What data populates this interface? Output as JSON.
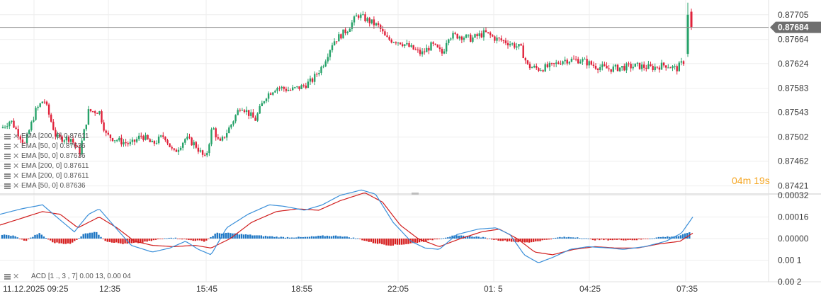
{
  "chart_data": [
    {
      "type": "candlestick",
      "y_ticks": [
        "0.87705",
        "0.87664",
        "0.87624",
        "0.87583",
        "0.87543",
        "0.87502",
        "0.87462",
        "0.87421"
      ],
      "ylim": [
        0.8741,
        0.8772
      ],
      "current_price": "0.87684",
      "countdown": {
        "min": "04",
        "min_unit": "m",
        "sec": "19",
        "sec_unit": "s"
      },
      "legend": [
        "EMA  [200, 0]  0.87611",
        "EMA  [50, 0]  0.87636",
        "EMA  [50, 0]  0.87636",
        "EMA  [200, 0]  0.87611",
        "EMA  [200, 0]  0.87611",
        "EMA  [50, 0]  0.87636"
      ],
      "colors": {
        "up": "#26a269",
        "down": "#e0213a",
        "price_tag": "#6f6f6f"
      },
      "anchors": [
        [
          0,
          0.87515
        ],
        [
          15,
          0.8753
        ],
        [
          35,
          0.8749
        ],
        [
          50,
          0.87545
        ],
        [
          62,
          0.87565
        ],
        [
          80,
          0.875
        ],
        [
          100,
          0.875
        ],
        [
          112,
          0.87475
        ],
        [
          125,
          0.87545
        ],
        [
          140,
          0.87545
        ],
        [
          150,
          0.87505
        ],
        [
          170,
          0.87495
        ],
        [
          185,
          0.8749
        ],
        [
          200,
          0.87505
        ],
        [
          215,
          0.8749
        ],
        [
          232,
          0.87505
        ],
        [
          245,
          0.87475
        ],
        [
          262,
          0.875
        ],
        [
          275,
          0.8749
        ],
        [
          290,
          0.87465
        ],
        [
          300,
          0.8752
        ],
        [
          310,
          0.8749
        ],
        [
          325,
          0.8752
        ],
        [
          340,
          0.87555
        ],
        [
          360,
          0.8753
        ],
        [
          375,
          0.8757
        ],
        [
          390,
          0.87585
        ],
        [
          410,
          0.8758
        ],
        [
          425,
          0.87585
        ],
        [
          440,
          0.87595
        ],
        [
          455,
          0.8762
        ],
        [
          470,
          0.8766
        ],
        [
          490,
          0.8768
        ],
        [
          505,
          0.87705
        ],
        [
          520,
          0.87695
        ],
        [
          535,
          0.87685
        ],
        [
          545,
          0.87665
        ],
        [
          565,
          0.8766
        ],
        [
          580,
          0.8765
        ],
        [
          595,
          0.8764
        ],
        [
          610,
          0.87655
        ],
        [
          625,
          0.8764
        ],
        [
          632,
          0.8767
        ],
        [
          650,
          0.8767
        ],
        [
          665,
          0.87665
        ],
        [
          685,
          0.87675
        ],
        [
          700,
          0.87665
        ],
        [
          715,
          0.8766
        ],
        [
          735,
          0.8765
        ],
        [
          745,
          0.8762
        ],
        [
          760,
          0.87615
        ],
        [
          780,
          0.8762
        ],
        [
          795,
          0.8763
        ],
        [
          820,
          0.8763
        ],
        [
          840,
          0.8762
        ],
        [
          860,
          0.87615
        ],
        [
          880,
          0.87618
        ],
        [
          900,
          0.8762
        ],
        [
          920,
          0.87617
        ],
        [
          940,
          0.87622
        ],
        [
          955,
          0.87615
        ],
        [
          967,
          0.8763
        ]
      ],
      "final_candles": [
        {
          "o": 0.8764,
          "h": 0.87725,
          "l": 0.87635,
          "c": 0.87705
        },
        {
          "o": 0.8771,
          "h": 0.87715,
          "l": 0.8768,
          "c": 0.87684
        }
      ]
    },
    {
      "type": "macd",
      "y_ticks": [
        "0.00032",
        "0.00016",
        "0.00000",
        "0.00 1",
        "0.00 2"
      ],
      "ylim": [
        -0.00032,
        0.00032
      ],
      "legend": "ACD  [1 ., 3 , 7]  0.00 13,  0.00 04",
      "colors": {
        "macd": "#3a8fd9",
        "signal": "#d11f1f",
        "hist_up": "#1f77c4",
        "hist_down": "#d62020"
      },
      "macd_anchors": [
        [
          0,
          0.00018
        ],
        [
          30,
          0.00022
        ],
        [
          60,
          0.00025
        ],
        [
          80,
          0.00016
        ],
        [
          105,
          5e-05
        ],
        [
          125,
          0.00018
        ],
        [
          140,
          0.00022
        ],
        [
          160,
          0.0001
        ],
        [
          185,
          -5e-05
        ],
        [
          215,
          -0.0001
        ],
        [
          240,
          -7e-05
        ],
        [
          262,
          -2e-05
        ],
        [
          280,
          -8e-05
        ],
        [
          298,
          -0.00012
        ],
        [
          320,
          8e-05
        ],
        [
          350,
          0.00018
        ],
        [
          380,
          0.00025
        ],
        [
          400,
          0.00024
        ],
        [
          430,
          0.00021
        ],
        [
          455,
          0.00025
        ],
        [
          480,
          0.00032
        ],
        [
          510,
          0.00036
        ],
        [
          530,
          0.00033
        ],
        [
          555,
          0.00012
        ],
        [
          580,
          -2e-05
        ],
        [
          600,
          -7e-05
        ],
        [
          620,
          -8e-05
        ],
        [
          645,
          3e-05
        ],
        [
          675,
          7e-05
        ],
        [
          700,
          8e-05
        ],
        [
          720,
          3e-05
        ],
        [
          740,
          -0.00012
        ],
        [
          760,
          -0.00018
        ],
        [
          780,
          -0.00014
        ],
        [
          805,
          -8e-05
        ],
        [
          830,
          -6e-05
        ],
        [
          860,
          -7e-05
        ],
        [
          880,
          -8e-05
        ],
        [
          910,
          -6e-05
        ],
        [
          940,
          -2e-05
        ],
        [
          962,
          4e-05
        ],
        [
          978,
          0.00016
        ]
      ],
      "signal_anchors": [
        [
          0,
          0.0001
        ],
        [
          30,
          0.00015
        ],
        [
          60,
          0.0002
        ],
        [
          85,
          0.00018
        ],
        [
          110,
          8e-05
        ],
        [
          140,
          0.00016
        ],
        [
          165,
          8e-05
        ],
        [
          190,
          -2e-05
        ],
        [
          215,
          -5e-05
        ],
        [
          245,
          -6e-05
        ],
        [
          275,
          -5e-05
        ],
        [
          298,
          -7e-05
        ],
        [
          325,
          0.0
        ],
        [
          355,
          0.00012
        ],
        [
          390,
          0.0002
        ],
        [
          420,
          0.00022
        ],
        [
          450,
          0.00021
        ],
        [
          480,
          0.00028
        ],
        [
          515,
          0.00034
        ],
        [
          540,
          0.00027
        ],
        [
          565,
          0.0001
        ],
        [
          590,
          0.0
        ],
        [
          620,
          -6e-05
        ],
        [
          650,
          0.0
        ],
        [
          680,
          5e-05
        ],
        [
          705,
          7e-05
        ],
        [
          730,
          0.0
        ],
        [
          755,
          -0.0001
        ],
        [
          780,
          -0.00012
        ],
        [
          810,
          -8e-05
        ],
        [
          840,
          -6e-05
        ],
        [
          870,
          -7e-05
        ],
        [
          900,
          -7e-05
        ],
        [
          930,
          -4e-05
        ],
        [
          960,
          -2e-05
        ],
        [
          978,
          4e-05
        ]
      ],
      "hist_anchors": [
        [
          0,
          3e-05
        ],
        [
          20,
          2e-05
        ],
        [
          35,
          -2e-05
        ],
        [
          55,
          4e-05
        ],
        [
          75,
          -3e-05
        ],
        [
          100,
          -4e-05
        ],
        [
          120,
          4e-05
        ],
        [
          135,
          5e-05
        ],
        [
          150,
          -2e-05
        ],
        [
          175,
          -4e-05
        ],
        [
          200,
          -3e-05
        ],
        [
          220,
          -1e-05
        ],
        [
          240,
          1e-05
        ],
        [
          265,
          -1e-05
        ],
        [
          290,
          -2e-05
        ],
        [
          305,
          4e-05
        ],
        [
          325,
          4e-05
        ],
        [
          345,
          3e-05
        ],
        [
          370,
          2e-05
        ],
        [
          400,
          1e-05
        ],
        [
          430,
          1e-05
        ],
        [
          455,
          2e-05
        ],
        [
          480,
          2e-05
        ],
        [
          505,
          0.0
        ],
        [
          525,
          -3e-05
        ],
        [
          550,
          -5e-05
        ],
        [
          575,
          -4e-05
        ],
        [
          600,
          -2e-05
        ],
        [
          620,
          0.0
        ],
        [
          640,
          2e-05
        ],
        [
          660,
          2e-05
        ],
        [
          680,
          1e-05
        ],
        [
          700,
          -1e-05
        ],
        [
          720,
          -2e-05
        ],
        [
          745,
          -3e-05
        ],
        [
          770,
          -1e-05
        ],
        [
          790,
          1e-05
        ],
        [
          815,
          1e-05
        ],
        [
          840,
          -1e-05
        ],
        [
          870,
          -1e-05
        ],
        [
          900,
          -1e-05
        ],
        [
          930,
          1e-05
        ],
        [
          960,
          2e-05
        ],
        [
          978,
          6e-05
        ]
      ]
    }
  ],
  "time_axis": [
    "11.12.2025  09:25",
    "12:35",
    "15:45",
    "18:55",
    "22:05",
    "01:  5",
    "04:25",
    "07:35"
  ]
}
